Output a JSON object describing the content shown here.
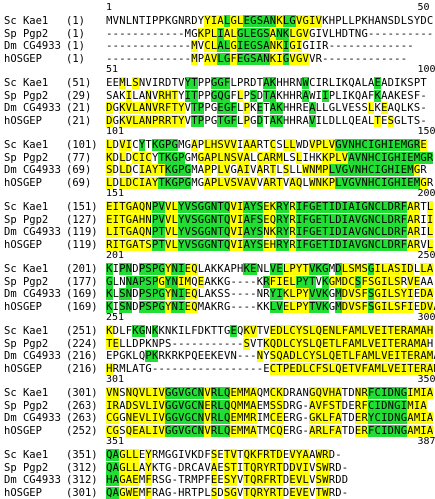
{
  "colors": {
    "conserved": "#22dd33",
    "similar": "#ffff00"
  },
  "blocks": [
    {
      "ticks": [
        "1",
        "50"
      ],
      "rows": [
        {
          "name": "Sc Kae1",
          "pos": "(1)",
          "seq": "MVNLNTIPPKGNRDYYIALGLEGSANKLGVGIVKHPLLPKHANSDLSYDC",
          "hl": "...............yyygyygggggyggyyyy................."
        },
        {
          "name": "Sp Pgp2",
          "pos": "(1)",
          "seq": "------------MGKPLIALGLEGSANKLGVGIVLHDTNG----------",
          "hl": "..............yyygyygggggyggyyy................."
        },
        {
          "name": "Dm CG4933",
          "pos": "(1)",
          "seq": "-------------MVCLALGIEGSANKIGIGIIR-------------",
          "hl": ".............y.yyggygggggyygyy...................."
        },
        {
          "name": "hOSGEP",
          "pos": "(1)",
          "seq": "-------------MPAVLGFEGSANKIGVGVVR-------------",
          "hl": ".............y.yyggygggggyygyyy..................."
        }
      ]
    },
    {
      "ticks": [
        "51",
        "100"
      ],
      "rows": [
        {
          "name": "Sc Kae1",
          "pos": "(51)",
          "seq": "EEMLSNVIRDTVYTPPGGFLPRDTAKHHRNWCIRLIKQALAEADIKSPT",
          "hl": "..y.y.......gg..ggg.....gg....g..........g........"
        },
        {
          "name": "Sp Pgp2",
          "pos": "(29)",
          "seq": "SAKILANVRHTYITPPGQGFLPSDTAKHHRAWIIPLIKQAFKAAKESF-",
          "hl": "...y..y.yyy.gg..ggg.y.g.gg....g..g.......g........"
        },
        {
          "name": "Dm CG4933",
          "pos": "(21)",
          "seq": "DGKVLANVRFTYVTPPGEGFLPKETAKHHREALLGLVESSLKEAQLKS-",
          "hl": "y.yyyyyyyyyy.gg..ggg.y.g.gg....g........y.y......."
        },
        {
          "name": "hOSGEP",
          "pos": "(21)",
          "seq": "DGKVLANPRRTYVTPPGTGFLPGDTAKHHRAVILDLLQEALTESGLTS-",
          "hl": "y.yyyyyyyyyy.gg..ggg.y.g.gg....g.........y.y......"
        }
      ]
    },
    {
      "ticks": [
        "101",
        "150"
      ],
      "rows": [
        {
          "name": "Sc Kae1",
          "pos": "(101)",
          "seq": "LDVICYTKGPGMGAPLHSVVIAARTCSLLWDVPLVGVNHCIGHIEMGRE",
          "hl": "y.yy.g.gggg..y.yyyyy.yy..y.yy..yyyygggggggggggggy"
        },
        {
          "name": "Sp Pgp2",
          "pos": "(77)",
          "seq": "KDLDCICYTKGPGMGAPLNSVALCARMLSLIHKKPLVAVNHCIGHIEMGR",
          "hl": "y.y.yyy.gggg..yyyyyyyy.yyyy..y...yyyygggggggggggggy"
        },
        {
          "name": "Dm CG4933",
          "pos": "(69)",
          "seq": "SDLDCIAYTKGPGMAPPLVGAIVARTLSLLWNMPLVGVNHCIGHIEMGR",
          "hl": "y.yy.yyyygggg..y.yy.yy.y.y.y..yyyygggggggggggggy"
        },
        {
          "name": "hOSGEP",
          "pos": "(69)",
          "seq": "LDLDCIAYTKGPGMGAPLVSVAVVARTVAQLWNKPLVGVNHCIGHIEMGR",
          "hl": "y.yyyyyyggggg..yyyyyyyy.yyy.yy.yyyygggggggggggggy"
        }
      ]
    },
    {
      "ticks": [
        "151",
        "200"
      ],
      "rows": [
        {
          "name": "Sc Kae1",
          "pos": "(151)",
          "seq": "EITGAQNPVVLYVSGGNTQVIAYSEKRYRIFGETIDIAIGNCLDRFARTL",
          "hl": "yyyyyyyggyyggggggggyygggyyggygggggggggggggggggyy.y"
        },
        {
          "name": "Sp Pgp2",
          "pos": "(127)",
          "seq": "EITGAHNPVVLYVSGGNTQVIAFSEQRYRIFGETLDIAVGNCLDRFARII",
          "hl": "yyyyyyyggyyggggggggyygggyyggygggggggggggggggggyy.y"
        },
        {
          "name": "Dm CG4933",
          "pos": "(119)",
          "seq": "LITGAQNPTVLYVSGGNTQVIAYSNKRYRIFGETIDIAVGNCLDRFARIL",
          "hl": "yyyyyyyggyyggggggggyygggyyggygggggggggggggggggyy.y"
        },
        {
          "name": "hOSGEP",
          "pos": "(119)",
          "seq": "RITGATSPTVLYVSGGNTQVIAYSEHRYRIFGETIDIAVGNCLDRFARVL",
          "hl": "yyyyyyyggyyggggggggyygggyyggygggggggggggggggggyy.y"
        }
      ]
    },
    {
      "ticks": [
        "201",
        "250"
      ],
      "rows": [
        {
          "name": "Sc Kae1",
          "pos": "(201)",
          "seq": "KIPNDPSPGYNIEQLAKKAPHKENLVELPYTVKGMDLSMSGILASIDLLA",
          "hl": "g.gg.ggggyggyy.......gg..ggyyyyggg.gyyyygyyyyyy.yy"
        },
        {
          "name": "Sp Pgp2",
          "pos": "(177)",
          "seq": "GLNNAPSPGYNIMQEAKKG----KRFIELPYTVKGMDCSFSGILSRVEAA",
          "hl": "g..gggggyggyy.y.....gg..gyyyyggg.gyyyygyyyyyy.yy"
        },
        {
          "name": "Dm CG4933",
          "pos": "(169)",
          "seq": "KLSNDPSPGYNIEQLAKSS----NRYIKLPYVVKGMDVSFSGILSYIEDA",
          "hl": "g.gg.ggggyggyy.......gg..ggyyyyggg.gyyyygyyyyyy.yy"
        },
        {
          "name": "hOSGEP",
          "pos": "(169)",
          "seq": "KISNDPSPGYNIEQMAKRG----KKLVELPYTVKGMDVSFSGILSFIEDVA",
          "hl": "g.gg.ggggyggyy.......gg..ggyyyyggg.gyyyygyyyyyy.yy"
        }
      ]
    },
    {
      "ticks": [
        "251",
        "300"
      ],
      "rows": [
        {
          "name": "Sc Kae1",
          "pos": "(251)",
          "seq": "KDLFKGNKKNKILFDKTTGEQKVTVEDLCYSLQENLFAMLVEITERAMAH",
          "hl": "y...gg.g...........g.yy..yyyyyyyyyyyyyyyyyyyyyyyyy"
        },
        {
          "name": "Sp Pgp2",
          "pos": "(224)",
          "seq": "TELLDPKNPS-----------SVTKQDLCYSLQETLFAMLVEITERAMAH",
          "hl": "yy..................yy..yyyyyyyyyyyyyyyyyyyyyyyyy"
        },
        {
          "name": "Dm CG4933",
          "pos": "(216)",
          "seq": "EPGKLQPKRKRKPQEEKEVN---NYSQADLCYSLQETLFAMLVEITERAMAH",
          "hl": "......gg...............y.yyyyyyyyyyyyyyyyyyyyyyyyy"
        },
        {
          "name": "hOSGEP",
          "pos": "(216)",
          "seq": "HRMLATG-----------------ECTPEDLCFSLQETVFAMLVEITERAMAH",
          "hl": "y.....................y..yyyyyyyyyyyyyyyyyyyyyyyyy"
        }
      ]
    },
    {
      "ticks": [
        "301",
        "350"
      ],
      "rows": [
        {
          "name": "Sc Kae1",
          "pos": "(301)",
          "seq": "VNSNQVLIVGGVGCNVRLQEMMAQMCKDRANGQVHATDNRFCIDNGIMIA",
          "hl": "yy.yyyyyyggggggygggyyyy..yy....yyyyy..yyggggggyyyy"
        },
        {
          "name": "Sp Pgp2",
          "pos": "(263)",
          "seq": "IRADSVLIVGGVGCNERLQQMMAEMSSDRG-AVFSTDERFCIDNGIMIA",
          "hl": "yy.yyyyyyggggggygggyyyy..yy....yyyyy..yyggggggyyyy"
        },
        {
          "name": "Dm CG4933",
          "pos": "(263)",
          "seq": "CGGNEVLIVGGVGCNVRLQEMMRIMCEERG-GKLFATDERYCIDNGAMIA",
          "hl": "yy.yyyyyyggggggygggyyyy..yy....yyyyy..yyggggggyyyy"
        },
        {
          "name": "hOSGEP",
          "pos": "(252)",
          "seq": "CGSQEALIVGGVGCNVRLQEMMATMCQERG-ARLFATDERFCIDNGAMIA",
          "hl": "yy.yyyyyyggggggygggyyyy..yy....yyyyy..yyggggggyyyy"
        }
      ]
    },
    {
      "ticks": [
        "351",
        "387"
      ],
      "rows": [
        {
          "name": "Sc Kae1",
          "pos": "(351)",
          "seq": "QAGLLEYRMGGIVKDFSETVTQKFRTDEVYAAWRD-",
          "hl": "ggyyy.y.........y.yy.yyyyyy.yyy.yy.."
        },
        {
          "name": "Sp Pgp2",
          "pos": "(312)",
          "seq": "QAGLLAYKTG-DRCAVAESTITQRYRTDDVIVSWRD-",
          "hl": "ggyyy.y.........y.yy.yyyyyy.yyy.yy.."
        },
        {
          "name": "Dm CG4933",
          "pos": "(312)",
          "seq": "HAGAEMFRSG-TRMPFEESYVTQRFRTDEVLVSWRDD",
          "hl": "ggyyy.y.........y.yy.yyyyyy.yyy.yy.."
        },
        {
          "name": "hOSGEP",
          "pos": "(301)",
          "seq": "QAGWEMFRAG-HRTPLSDSGVTQRYRTDEVEVTWRD-",
          "hl": "ggyyy.y.........y.yy.yyyyyy.yyy.yy.."
        }
      ]
    }
  ]
}
